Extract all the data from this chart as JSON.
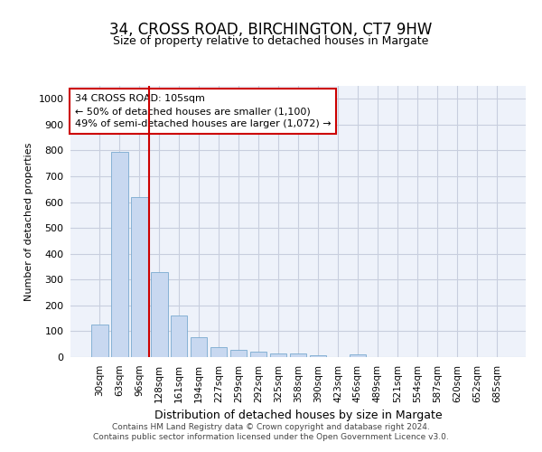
{
  "title": "34, CROSS ROAD, BIRCHINGTON, CT7 9HW",
  "subtitle": "Size of property relative to detached houses in Margate",
  "xlabel": "Distribution of detached houses by size in Margate",
  "ylabel": "Number of detached properties",
  "categories": [
    "30sqm",
    "63sqm",
    "96sqm",
    "128sqm",
    "161sqm",
    "194sqm",
    "227sqm",
    "259sqm",
    "292sqm",
    "325sqm",
    "358sqm",
    "390sqm",
    "423sqm",
    "456sqm",
    "489sqm",
    "521sqm",
    "554sqm",
    "587sqm",
    "620sqm",
    "652sqm",
    "685sqm"
  ],
  "values": [
    125,
    795,
    618,
    328,
    162,
    78,
    40,
    27,
    22,
    15,
    15,
    8,
    0,
    10,
    0,
    0,
    0,
    0,
    0,
    0,
    0
  ],
  "bar_color": "#c8d8f0",
  "bar_edge_color": "#7aaad0",
  "vline_color": "#cc0000",
  "vline_x_index": 2,
  "annotation_text": "34 CROSS ROAD: 105sqm\n← 50% of detached houses are smaller (1,100)\n49% of semi-detached houses are larger (1,072) →",
  "annotation_box_facecolor": "#ffffff",
  "annotation_box_edgecolor": "#cc0000",
  "ylim": [
    0,
    1050
  ],
  "yticks": [
    0,
    100,
    200,
    300,
    400,
    500,
    600,
    700,
    800,
    900,
    1000
  ],
  "fig_bg_color": "#ffffff",
  "plot_bg_color": "#eef2fa",
  "grid_color": "#c8cede",
  "footer": "Contains HM Land Registry data © Crown copyright and database right 2024.\nContains public sector information licensed under the Open Government Licence v3.0.",
  "title_fontsize": 12,
  "subtitle_fontsize": 9,
  "ylabel_fontsize": 8,
  "xlabel_fontsize": 9
}
